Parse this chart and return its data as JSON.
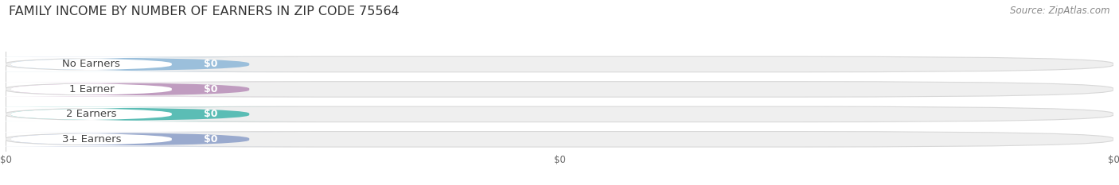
{
  "title": "FAMILY INCOME BY NUMBER OF EARNERS IN ZIP CODE 75564",
  "source": "Source: ZipAtlas.com",
  "categories": [
    "No Earners",
    "1 Earner",
    "2 Earners",
    "3+ Earners"
  ],
  "values": [
    0,
    0,
    0,
    0
  ],
  "bar_colors": [
    "#9bbfdb",
    "#c09cc0",
    "#5bbdb5",
    "#9aaace"
  ],
  "bg_color": "#ffffff",
  "bar_bg_color": "#efefef",
  "bar_bg_edge_color": "#d8d8d8",
  "title_fontsize": 11.5,
  "source_fontsize": 8.5,
  "label_fontsize": 9.5,
  "value_fontsize": 9
}
